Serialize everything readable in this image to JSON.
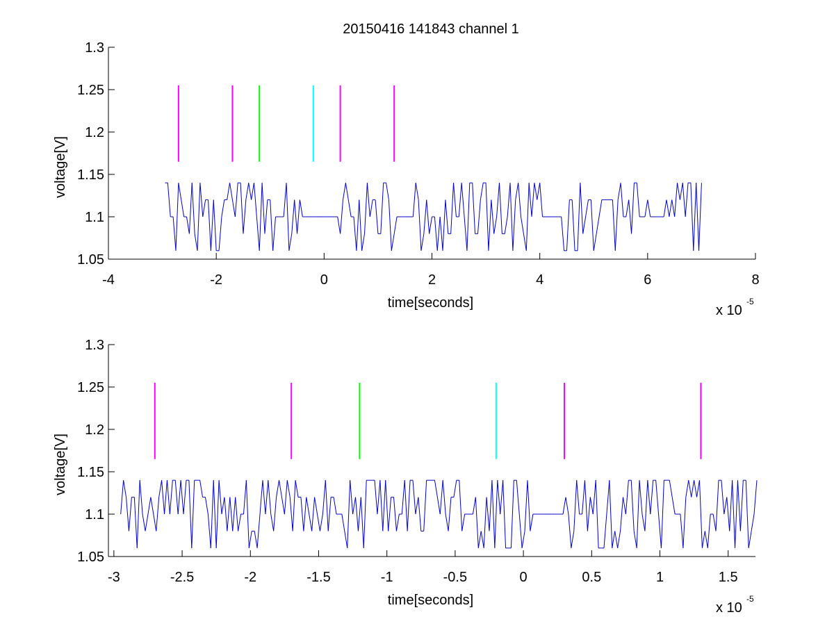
{
  "figure": {
    "title": "20150416 141843 channel 1"
  },
  "chart_data": [
    {
      "type": "line",
      "title": "20150416 141843 channel 1",
      "xlabel": "time[seconds]",
      "ylabel": "voltage[V]",
      "x_exponent_label": "x 10",
      "x_exponent_power": "-5",
      "xlim": [
        -4,
        8
      ],
      "ylim": [
        1.05,
        1.3
      ],
      "xticks": [
        -4,
        -2,
        0,
        2,
        4,
        6,
        8
      ],
      "xtick_labels": [
        "-4",
        "-2",
        "0",
        "2",
        "4",
        "6",
        "8"
      ],
      "yticks": [
        1.05,
        1.1,
        1.15,
        1.2,
        1.25,
        1.3
      ],
      "ytick_labels": [
        "1.05",
        "1.1",
        "1.15",
        "1.2",
        "1.25",
        "1.3"
      ],
      "grid": false,
      "signal": {
        "color": "#0000cc",
        "x_start": -2.95,
        "x_end": 7.0,
        "step": 0.05,
        "baseline": 1.1,
        "levels": [
          1.06,
          1.08,
          1.1,
          1.12,
          1.14
        ],
        "quiet_regions": [
          [
            -0.45,
            0.15
          ],
          [
            1.35,
            1.7
          ],
          [
            4.1,
            4.4
          ],
          [
            6.05,
            6.3
          ]
        ]
      },
      "markers": [
        {
          "x": -2.7,
          "y0": 1.165,
          "y1": 1.255,
          "color": "#ff00ff"
        },
        {
          "x": -1.7,
          "y0": 1.165,
          "y1": 1.255,
          "color": "#ff00ff"
        },
        {
          "x": -1.2,
          "y0": 1.165,
          "y1": 1.255,
          "color": "#00ff00"
        },
        {
          "x": -0.2,
          "y0": 1.165,
          "y1": 1.255,
          "color": "#00ffff"
        },
        {
          "x": 0.3,
          "y0": 1.165,
          "y1": 1.255,
          "color": "#ff00ff"
        },
        {
          "x": 1.3,
          "y0": 1.165,
          "y1": 1.255,
          "color": "#ff00ff"
        }
      ]
    },
    {
      "type": "line",
      "title": "",
      "xlabel": "time[seconds]",
      "ylabel": "voltage[V]",
      "x_exponent_label": "x 10",
      "x_exponent_power": "-5",
      "xlim": [
        -3.04,
        1.7
      ],
      "ylim": [
        1.05,
        1.3
      ],
      "xticks": [
        -3,
        -2.5,
        -2,
        -1.5,
        -1,
        -0.5,
        0,
        0.5,
        1,
        1.5
      ],
      "xtick_labels": [
        "-3",
        "-2.5",
        "-2",
        "-1.5",
        "-1",
        "-0.5",
        "0",
        "0.5",
        "1",
        "1.5"
      ],
      "yticks": [
        1.05,
        1.1,
        1.15,
        1.2,
        1.25,
        1.3
      ],
      "ytick_labels": [
        "1.05",
        "1.1",
        "1.15",
        "1.2",
        "1.25",
        "1.3"
      ],
      "grid": false,
      "signal": {
        "color": "#0000cc",
        "x_start": -2.95,
        "x_end": 1.7,
        "step": 0.02,
        "baseline": 1.1,
        "levels": [
          1.06,
          1.08,
          1.1,
          1.12,
          1.14
        ],
        "quiet_regions": [
          [
            -0.45,
            -0.38
          ],
          [
            0.05,
            0.3
          ],
          [
            1.1,
            1.15
          ]
        ]
      },
      "markers": [
        {
          "x": -2.7,
          "y0": 1.165,
          "y1": 1.255,
          "color": "#ff00ff"
        },
        {
          "x": -1.7,
          "y0": 1.165,
          "y1": 1.255,
          "color": "#ff00ff"
        },
        {
          "x": -1.2,
          "y0": 1.165,
          "y1": 1.255,
          "color": "#00ff00"
        },
        {
          "x": -0.2,
          "y0": 1.165,
          "y1": 1.255,
          "color": "#00ffff"
        },
        {
          "x": 0.3,
          "y0": 1.165,
          "y1": 1.255,
          "color": "#ff00ff"
        },
        {
          "x": 1.3,
          "y0": 1.165,
          "y1": 1.255,
          "color": "#ff00ff"
        }
      ]
    }
  ]
}
